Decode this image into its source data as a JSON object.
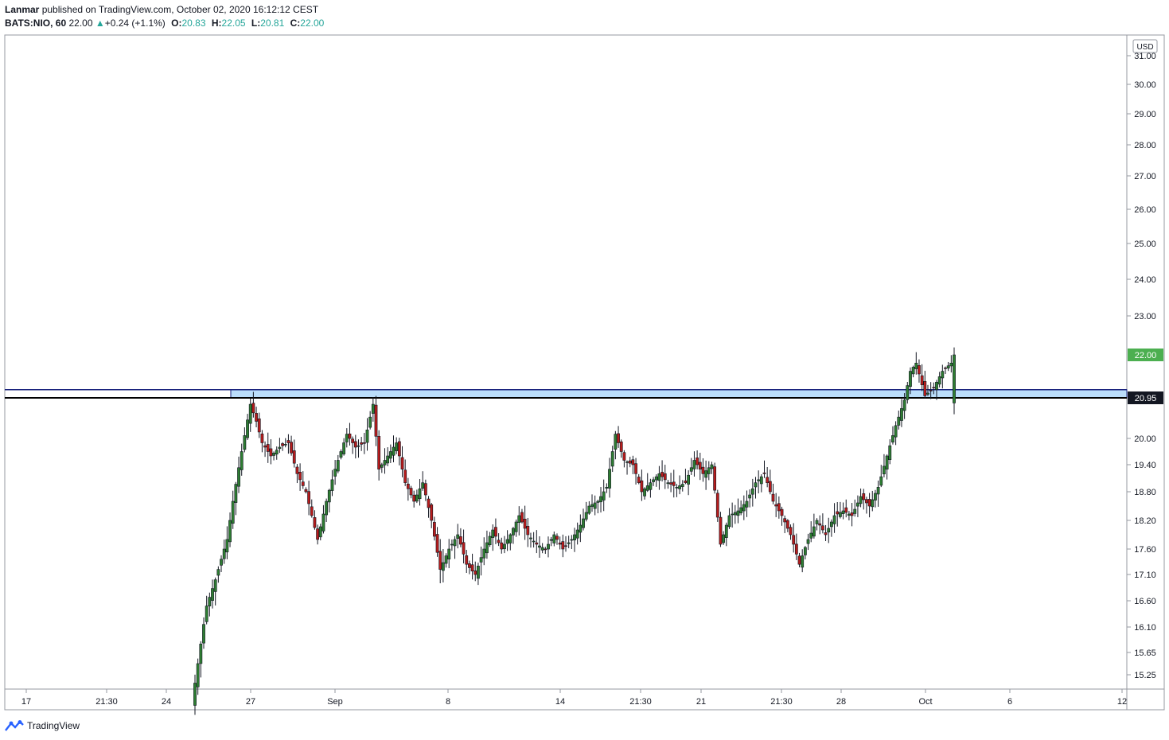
{
  "header": {
    "author": "Lanmar",
    "published_text": "published on TradingView.com, October 02, 2020 16:12:12 CEST",
    "symbol": "BATS:NIO, 60",
    "last": "22.00",
    "change": "+0.24 (+1.1%)",
    "o_label": "O:",
    "o_value": "20.83",
    "h_label": "H:",
    "h_value": "22.05",
    "l_label": "L:",
    "l_value": "20.81",
    "c_label": "C:",
    "c_value": "22.00"
  },
  "price_axis": {
    "currency": "USD",
    "last_price_label": "22.00",
    "line_price_label": "20.95"
  },
  "footer": {
    "brand": "TradingView"
  },
  "colors": {
    "up": "#26a69a",
    "candle_up": "#2e7d32",
    "candle_down": "#b71c1c",
    "zone_fill": "#bbdefb",
    "zone_border": "#1a237e",
    "last_badge": "#4caf50"
  },
  "chart_data": {
    "type": "candlestick",
    "title": "BATS:NIO, 60",
    "ylabel": "USD",
    "ylim": [
      15.0,
      31.5
    ],
    "y_ticks": [
      "31.00",
      "30.00",
      "29.00",
      "28.00",
      "27.00",
      "26.00",
      "25.00",
      "24.00",
      "23.00",
      "22.00",
      "20.95",
      "20.00",
      "19.40",
      "18.80",
      "18.20",
      "17.60",
      "17.10",
      "16.60",
      "16.10",
      "15.65",
      "15.25"
    ],
    "x_ticks": [
      "17",
      "21:30",
      "24",
      "27",
      "Sep",
      "8",
      "14",
      "21:30",
      "21",
      "21:30",
      "28",
      "Oct",
      "6",
      "12"
    ],
    "horizontal_line": {
      "price": 20.95
    },
    "zone": {
      "from": 20.95,
      "to": 21.1,
      "start": "26 Aug"
    },
    "last_price": 22.0,
    "anchors": [
      [
        0,
        15.1
      ],
      [
        4,
        16.5
      ],
      [
        7,
        17.0
      ],
      [
        11,
        17.8
      ],
      [
        13,
        18.6
      ],
      [
        16,
        19.7
      ],
      [
        19,
        20.8
      ],
      [
        21,
        20.4
      ],
      [
        23,
        19.9
      ],
      [
        26,
        19.6
      ],
      [
        29,
        19.8
      ],
      [
        32,
        19.9
      ],
      [
        35,
        19.2
      ],
      [
        38,
        18.8
      ],
      [
        42,
        17.8
      ],
      [
        45,
        18.6
      ],
      [
        48,
        19.3
      ],
      [
        52,
        20.1
      ],
      [
        55,
        19.8
      ],
      [
        58,
        19.9
      ],
      [
        61,
        20.8
      ],
      [
        63,
        19.3
      ],
      [
        66,
        19.6
      ],
      [
        69,
        19.9
      ],
      [
        72,
        19.0
      ],
      [
        75,
        18.6
      ],
      [
        78,
        19.0
      ],
      [
        81,
        18.2
      ],
      [
        84,
        17.2
      ],
      [
        87,
        17.6
      ],
      [
        90,
        17.9
      ],
      [
        93,
        17.3
      ],
      [
        96,
        17.1
      ],
      [
        99,
        17.6
      ],
      [
        102,
        18.0
      ],
      [
        105,
        17.6
      ],
      [
        108,
        17.9
      ],
      [
        111,
        18.3
      ],
      [
        114,
        17.9
      ],
      [
        117,
        17.7
      ],
      [
        120,
        17.6
      ],
      [
        123,
        17.9
      ],
      [
        126,
        17.6
      ],
      [
        129,
        17.8
      ],
      [
        132,
        18.1
      ],
      [
        135,
        18.5
      ],
      [
        138,
        18.6
      ],
      [
        141,
        18.9
      ],
      [
        144,
        20.1
      ],
      [
        147,
        19.5
      ],
      [
        150,
        19.4
      ],
      [
        153,
        18.8
      ],
      [
        156,
        19.0
      ],
      [
        159,
        19.2
      ],
      [
        162,
        19.0
      ],
      [
        165,
        18.9
      ],
      [
        168,
        19.0
      ],
      [
        171,
        19.5
      ],
      [
        174,
        19.2
      ],
      [
        177,
        19.4
      ],
      [
        180,
        17.7
      ],
      [
        183,
        18.3
      ],
      [
        186,
        18.4
      ],
      [
        189,
        18.6
      ],
      [
        192,
        19.0
      ],
      [
        195,
        19.2
      ],
      [
        198,
        18.6
      ],
      [
        201,
        18.3
      ],
      [
        204,
        17.9
      ],
      [
        207,
        17.3
      ],
      [
        210,
        17.8
      ],
      [
        213,
        18.2
      ],
      [
        216,
        17.9
      ],
      [
        219,
        18.3
      ],
      [
        222,
        18.4
      ],
      [
        225,
        18.3
      ],
      [
        228,
        18.7
      ],
      [
        231,
        18.5
      ],
      [
        234,
        18.9
      ],
      [
        237,
        19.6
      ],
      [
        240,
        20.3
      ],
      [
        243,
        20.9
      ],
      [
        245,
        21.6
      ],
      [
        247,
        21.8
      ],
      [
        250,
        21.0
      ],
      [
        253,
        21.2
      ],
      [
        256,
        21.6
      ],
      [
        259,
        21.8
      ],
      [
        260,
        22.0
      ]
    ]
  }
}
